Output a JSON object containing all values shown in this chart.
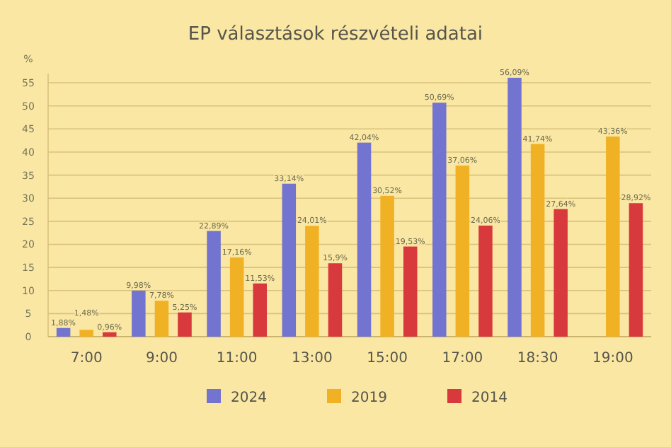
{
  "chart_data": {
    "type": "bar",
    "title": "EP választások részvételi adatai",
    "ylabel": "%",
    "categories": [
      "7:00",
      "9:00",
      "11:00",
      "13:00",
      "15:00",
      "17:00",
      "18:30",
      "19:00"
    ],
    "series": [
      {
        "name": "2024",
        "color": "#7374cf",
        "values": [
          1.88,
          9.98,
          22.89,
          33.14,
          42.04,
          50.69,
          56.09,
          null
        ],
        "value_labels": [
          "1,88%",
          "9,98%",
          "22,89%",
          "33,14%",
          "42,04%",
          "50,69%",
          "56,09%",
          null
        ]
      },
      {
        "name": "2019",
        "color": "#f0b224",
        "values": [
          1.48,
          7.78,
          17.16,
          24.01,
          30.52,
          37.06,
          41.74,
          43.36
        ],
        "value_labels": [
          "1,48%",
          "7,78%",
          "17,16%",
          "24,01%",
          "30,52%",
          "37,06%",
          "41,74%",
          "43,36%"
        ]
      },
      {
        "name": "2014",
        "color": "#d8393c",
        "values": [
          0.96,
          5.25,
          11.53,
          15.9,
          19.53,
          24.06,
          27.64,
          28.92
        ],
        "value_labels": [
          "0,96%",
          "5,25%",
          "11,53%",
          "15,9%",
          "19,53%",
          "24,06%",
          "27,64%",
          "28,92%"
        ]
      }
    ],
    "ylim": [
      0,
      57
    ],
    "yticks": [
      0,
      5,
      10,
      15,
      20,
      25,
      30,
      35,
      40,
      45,
      50,
      55
    ],
    "grid": "y",
    "legend": "bottom"
  }
}
